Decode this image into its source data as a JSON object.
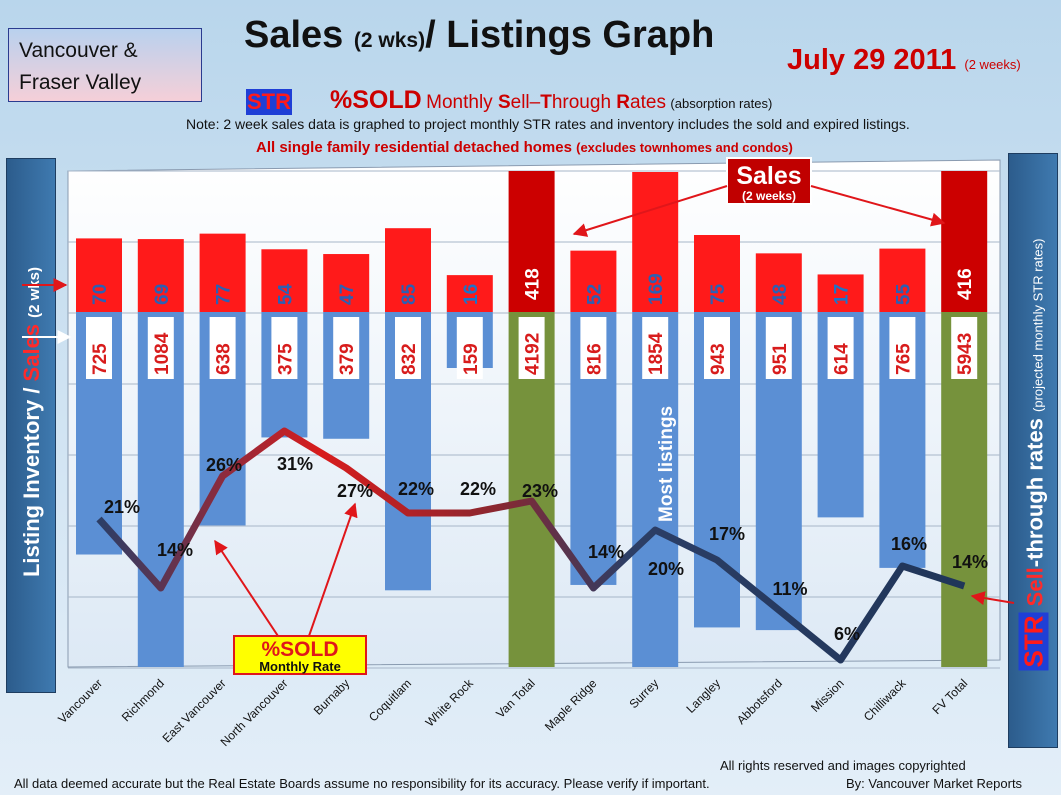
{
  "region_box": {
    "line1": "Vancouver &",
    "line2": "Fraser Valley"
  },
  "title": {
    "main": "Sales ",
    "main_small": "(2 wks)",
    "main_rest": "/ Listings Graph"
  },
  "date": {
    "main": "July 29 2011",
    "small": "(2 weeks)"
  },
  "subtitle": {
    "badge": "STR",
    "sold": "%SOLD",
    "monthly": "Monthly ",
    "s": "S",
    "ell": "ell",
    "dash": "–",
    "t": "T",
    "hrough": "hrough ",
    "r": "R",
    "ates": "ates",
    "absorption": "(absorption rates)"
  },
  "note": "Note: 2 week sales data is graphed to project monthly STR rates and inventory includes the sold and expired listings.",
  "scope": {
    "main": "All single family residential detached homes",
    "small": "(excludes townhomes and condos)"
  },
  "left_axis": {
    "part1": "Listing Inventory / ",
    "part2": "Sales",
    "part3": "(2 wks)"
  },
  "right_axis": {
    "badge": "STR",
    "part1": "Sell",
    "part2": "-through rates",
    "small": "(projected monthly STR rates)"
  },
  "annotations": {
    "sales_title": "Sales",
    "sales_sub": "(2 weeks)",
    "sold_title": "%SOLD",
    "sold_sub": "Monthly Rate",
    "most_listings": "Most listings"
  },
  "footer": {
    "rights": "All rights reserved and  images copyrighted",
    "disclaimer": "All data deemed accurate but the Real Estate Boards assume no responsibility for its accuracy.  Please verify if important.",
    "by": "By: Vancouver Market Reports"
  },
  "colors": {
    "sales_bar": "#ff1a1a",
    "sales_total_bar": "#cc0000",
    "listing_bar": "#5b8fd4",
    "listing_total_bar": "#76923c",
    "str_line_start": "#2c3e66",
    "str_line_peak": "#d81c1c"
  },
  "chart_data": {
    "type": "bar",
    "categories": [
      "Vancouver",
      "Richmond",
      "East Vancouver",
      "North Vancouver",
      "Burnaby",
      "Coquitlam",
      "White Rock",
      "Van Total",
      "Maple Ridge",
      "Surrey",
      "Langley",
      "Abbotsford",
      "Mission",
      "Chilliwack",
      "FV Total"
    ],
    "series": [
      {
        "values": [
          70,
          69,
          77,
          54,
          47,
          85,
          16,
          418,
          52,
          169,
          75,
          48,
          17,
          55,
          416
        ]
      },
      {
        "values": [
          725,
          1084,
          638,
          375,
          379,
          832,
          159,
          4192,
          816,
          1854,
          943,
          951,
          614,
          765,
          5943
        ]
      },
      {
        "values": [
          21,
          14,
          26,
          31,
          27,
          22,
          22,
          23,
          14,
          20,
          17,
          11,
          6,
          16,
          14
        ],
        "labels": [
          "21%",
          "14%",
          "26%",
          "31%",
          "27%",
          "22%",
          "22%",
          "23%",
          "14%",
          "20%",
          "17%",
          "11%",
          "6%",
          "16%",
          "14%"
        ]
      }
    ],
    "grid": true
  }
}
